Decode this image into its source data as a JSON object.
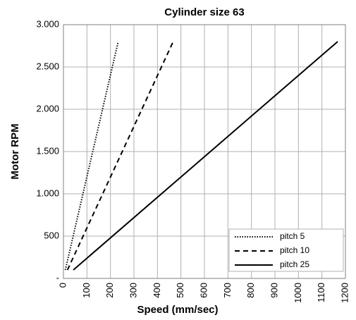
{
  "chart_data": {
    "type": "line",
    "title": "Cylinder size 63",
    "x_label": "Speed (mm/sec)",
    "y_label": "Motor RPM",
    "series": [
      {
        "name": "pitch 5",
        "color": "#000000",
        "dash": "dotted",
        "x": [
          8,
          233
        ],
        "values": [
          100,
          2800
        ]
      },
      {
        "name": "pitch 10",
        "color": "#000000",
        "dash": "dashed",
        "x": [
          17,
          467
        ],
        "values": [
          100,
          2800
        ]
      },
      {
        "name": "pitch 25",
        "color": "#000000",
        "dash": "solid",
        "x": [
          42,
          1167
        ],
        "values": [
          100,
          2800
        ]
      }
    ],
    "xlim": [
      0,
      1200
    ],
    "xticks": [
      0,
      100,
      200,
      300,
      400,
      500,
      600,
      700,
      800,
      900,
      1000,
      1100,
      1200
    ],
    "ylim": [
      0,
      3000
    ],
    "yticks": [
      {
        "value": 0,
        "label": "-"
      },
      500,
      {
        "value": 1000,
        "label": "1.000"
      },
      {
        "value": 1500,
        "label": "1.500"
      },
      {
        "value": 2000,
        "label": "2.000"
      },
      {
        "value": 2500,
        "label": "2.500"
      },
      {
        "value": 3000,
        "label": "3.000"
      }
    ],
    "grid": true,
    "legend": "lower right"
  }
}
